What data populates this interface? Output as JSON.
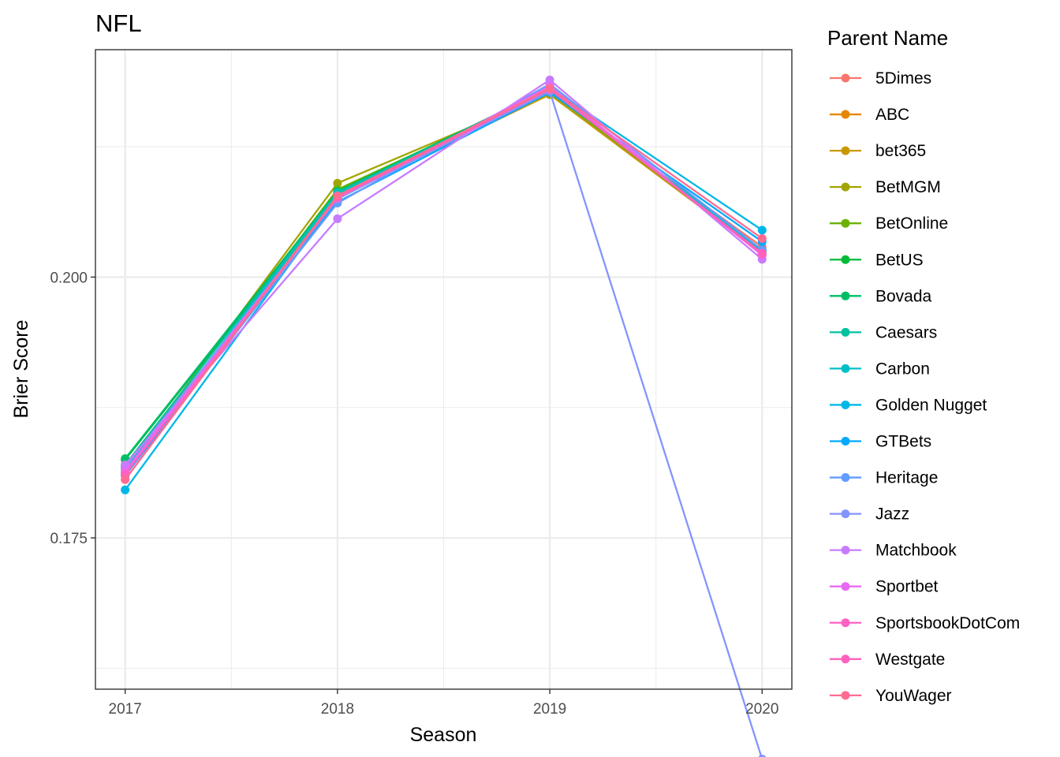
{
  "chart_data": {
    "type": "line",
    "title": "NFL",
    "xlabel": "Season",
    "ylabel": "Brier Score",
    "x": [
      2017,
      2018,
      2019,
      2020
    ],
    "x_tick_labels": [
      "2017",
      "2018",
      "2019",
      "2020"
    ],
    "y_ticks": [
      0.175,
      0.2
    ],
    "y_tick_labels": [
      "0.175",
      "0.200"
    ],
    "ylim": [
      0.1605,
      0.2218
    ],
    "xlim": [
      2016.86,
      2020.14
    ],
    "grid": true,
    "legend_title": "Parent Name",
    "legend_position": "right",
    "series": [
      {
        "name": "5Dimes",
        "color": "#F8766D",
        "values": [
          0.181,
          0.2076,
          0.2176,
          0.2029
        ]
      },
      {
        "name": "ABC",
        "color": "#E58700",
        "values": [
          0.1812,
          0.2077,
          0.2175,
          0.2025
        ]
      },
      {
        "name": "bet365",
        "color": "#C99800",
        "values": [
          0.1813,
          0.2079,
          0.2175,
          0.2023
        ]
      },
      {
        "name": "BetMGM",
        "color": "#A3A500",
        "values": [
          0.1817,
          0.209,
          0.2176,
          0.2026
        ]
      },
      {
        "name": "BetOnline",
        "color": "#6BB100",
        "values": [
          0.1818,
          0.2084,
          0.2178,
          0.2023
        ]
      },
      {
        "name": "BetUS",
        "color": "#00BA38",
        "values": [
          0.1825,
          0.2081,
          0.218,
          0.2025
        ]
      },
      {
        "name": "Bovada",
        "color": "#00BE67",
        "values": [
          0.1826,
          0.2082,
          0.2181,
          0.2022
        ]
      },
      {
        "name": "Caesars",
        "color": "#00C19F",
        "values": [
          0.182,
          0.2081,
          0.218,
          0.2025
        ]
      },
      {
        "name": "Carbon",
        "color": "#00BFC4",
        "values": [
          0.1815,
          0.208,
          0.2179,
          0.2026
        ]
      },
      {
        "name": "Golden Nugget",
        "color": "#00B8E7",
        "values": [
          0.1796,
          0.2075,
          0.2182,
          0.2045
        ]
      },
      {
        "name": "GTBets",
        "color": "#00A9FF",
        "values": [
          0.181,
          0.2072,
          0.2177,
          0.2034
        ]
      },
      {
        "name": "Heritage",
        "color": "#619CFF",
        "values": [
          0.1812,
          0.2071,
          0.2185,
          0.2026
        ]
      },
      {
        "name": "Jazz",
        "color": "#8494FF",
        "values": [
          0.1818,
          0.2075,
          0.2178,
          0.1538
        ]
      },
      {
        "name": "Matchbook",
        "color": "#C77CFF",
        "values": [
          0.182,
          0.2056,
          0.2189,
          0.2017
        ]
      },
      {
        "name": "Sportbet",
        "color": "#E76BF3",
        "values": [
          0.1814,
          0.2076,
          0.2183,
          0.2021
        ]
      },
      {
        "name": "SportsbookDotCom",
        "color": "#FF61C3",
        "values": [
          0.1811,
          0.2076,
          0.218,
          0.2022
        ]
      },
      {
        "name": "Westgate",
        "color": "#FF62BC",
        "values": [
          0.1806,
          0.2077,
          0.218,
          0.2023
        ]
      },
      {
        "name": "YouWager",
        "color": "#FF6C91",
        "values": [
          0.1806,
          0.2078,
          0.2181,
          0.2037
        ]
      }
    ]
  }
}
